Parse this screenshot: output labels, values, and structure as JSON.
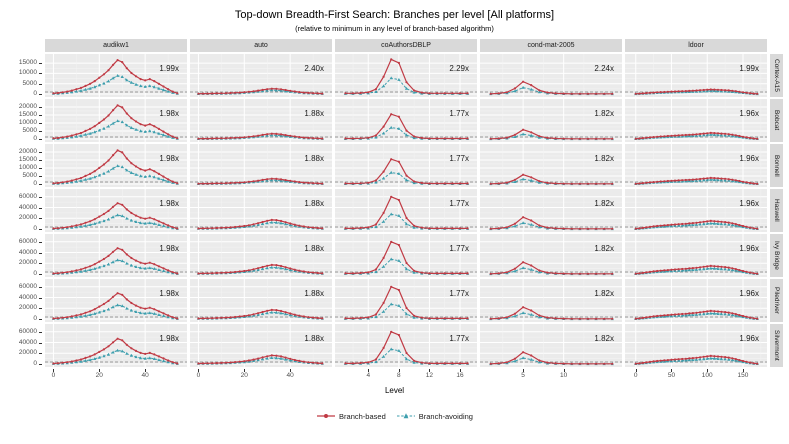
{
  "title": "Top-down Breadth-First Search: Branches per level [All platforms]",
  "subtitle": "(relative to minimum in any level of branch-based algorithm)",
  "chart_data": {
    "type": "line",
    "faceting": {
      "columns_by": "graph",
      "rows_by": "platform"
    },
    "x_axis": {
      "label": "Level"
    },
    "grid": "on",
    "legend_position": "bottom",
    "panel_background": "#ebebeb",
    "strip_background": "#d9d9d9",
    "reference_line": {
      "style": "dashed",
      "color": "#808080",
      "meaning": "minimum in any level of branch-based algorithm"
    },
    "series": [
      {
        "name": "Branch-based",
        "color": "#C03A44",
        "marker": "circle",
        "linestyle": "solid"
      },
      {
        "name": "Branch-avoiding",
        "color": "#3C9EAD",
        "marker": "triangle",
        "linestyle": "dashed"
      }
    ],
    "facet_columns": [
      {
        "label": "audikw1",
        "x_min": -1.5,
        "x_max": 56.5,
        "x_ticks": [
          0,
          20,
          40
        ],
        "levels": [
          0,
          2,
          4,
          6,
          8,
          10,
          12,
          14,
          16,
          18,
          20,
          22,
          24,
          26,
          28,
          30,
          32,
          34,
          36,
          38,
          40,
          42,
          44,
          46,
          48,
          50,
          52,
          54
        ],
        "branch_based_norm": [
          0.02,
          0.03,
          0.05,
          0.07,
          0.1,
          0.14,
          0.18,
          0.24,
          0.3,
          0.38,
          0.48,
          0.58,
          0.7,
          0.86,
          1.0,
          0.94,
          0.76,
          0.62,
          0.52,
          0.44,
          0.4,
          0.44,
          0.38,
          0.3,
          0.22,
          0.14,
          0.07,
          0.02
        ],
        "avoiding_ratio": 0.54
      },
      {
        "label": "auto",
        "x_min": -1.5,
        "x_max": 56.5,
        "x_ticks": [
          0,
          20,
          40
        ],
        "levels": [
          0,
          2,
          4,
          6,
          8,
          10,
          12,
          14,
          16,
          18,
          20,
          22,
          24,
          26,
          28,
          30,
          32,
          34,
          36,
          38,
          40,
          42,
          44,
          46,
          48,
          50,
          52,
          54
        ],
        "branch_based_norm": [
          0.06,
          0.07,
          0.08,
          0.09,
          0.11,
          0.13,
          0.15,
          0.18,
          0.22,
          0.27,
          0.33,
          0.41,
          0.51,
          0.63,
          0.77,
          0.9,
          1.0,
          0.97,
          0.88,
          0.74,
          0.6,
          0.47,
          0.36,
          0.27,
          0.2,
          0.15,
          0.11,
          0.07
        ],
        "avoiding_ratio": 0.72
      },
      {
        "label": "coAuthorsDBLP",
        "x_min": 0.3,
        "x_max": 17.7,
        "x_ticks": [
          4,
          8,
          12,
          16
        ],
        "levels": [
          1,
          2,
          3,
          4,
          5,
          6,
          7,
          8,
          9,
          10,
          11,
          12,
          13,
          14,
          15,
          16,
          17
        ],
        "branch_based_norm": [
          0.02,
          0.02,
          0.03,
          0.05,
          0.14,
          0.5,
          1.0,
          0.9,
          0.34,
          0.1,
          0.04,
          0.02,
          0.02,
          0.02,
          0.02,
          0.02,
          0.02
        ],
        "avoiding_ratio": 0.46
      },
      {
        "label": "cond-mat-2005",
        "x_min": 0.3,
        "x_max": 16.7,
        "x_ticks": [
          5,
          10
        ],
        "levels": [
          1,
          2,
          3,
          4,
          5,
          6,
          7,
          8,
          9,
          10,
          11,
          12,
          13,
          14,
          15,
          16
        ],
        "branch_based_norm": [
          0.02,
          0.05,
          0.14,
          0.45,
          1.0,
          0.72,
          0.3,
          0.12,
          0.05,
          0.03,
          0.02,
          0.02,
          0.02,
          0.02,
          0.02,
          0.02
        ],
        "avoiding_ratio": 0.52
      },
      {
        "label": "ldoor",
        "x_min": -8,
        "x_max": 178,
        "x_ticks": [
          0,
          50,
          100,
          150
        ],
        "levels": [
          0,
          5,
          10,
          15,
          20,
          25,
          30,
          35,
          40,
          45,
          50,
          55,
          60,
          65,
          70,
          75,
          80,
          85,
          90,
          95,
          100,
          105,
          110,
          115,
          120,
          125,
          130,
          135,
          140,
          145,
          150,
          155,
          160,
          165,
          170
        ],
        "branch_based_norm": [
          0.04,
          0.08,
          0.14,
          0.2,
          0.26,
          0.32,
          0.37,
          0.41,
          0.45,
          0.49,
          0.53,
          0.56,
          0.59,
          0.62,
          0.65,
          0.69,
          0.73,
          0.77,
          0.83,
          0.89,
          0.94,
          1.0,
          0.97,
          0.93,
          0.89,
          0.85,
          0.79,
          0.71,
          0.61,
          0.49,
          0.37,
          0.27,
          0.17,
          0.09,
          0.04
        ],
        "avoiding_ratio": 0.7
      }
    ],
    "facet_rows": [
      {
        "label": "Cortex-A15",
        "y_ticks": [
          0,
          5000,
          10000,
          15000
        ],
        "y_max": 17500,
        "branch_based_peaks": [
          16500,
          2600,
          16800,
          6000,
          2200
        ]
      },
      {
        "label": "Bobcat",
        "y_ticks": [
          0,
          5000,
          10000,
          15000,
          20000
        ],
        "y_max": 22500,
        "branch_based_peaks": [
          21000,
          3300,
          15500,
          5800,
          3800
        ]
      },
      {
        "label": "Bonnell",
        "y_ticks": [
          0,
          5000,
          10000,
          15000,
          20000
        ],
        "y_max": 22500,
        "branch_based_peaks": [
          21000,
          3300,
          15500,
          5800,
          3800
        ]
      },
      {
        "label": "Haswell",
        "y_ticks": [
          0,
          20000,
          40000,
          60000
        ],
        "y_max": 67000,
        "branch_based_peaks": [
          48000,
          17000,
          60000,
          22000,
          15000
        ]
      },
      {
        "label": "Ivy Bridge",
        "y_ticks": [
          0,
          20000,
          40000,
          60000
        ],
        "y_max": 67000,
        "branch_based_peaks": [
          48000,
          17000,
          60000,
          22000,
          15000
        ]
      },
      {
        "label": "Piledriver",
        "y_ticks": [
          0,
          20000,
          40000,
          60000
        ],
        "y_max": 67000,
        "branch_based_peaks": [
          48000,
          17000,
          60000,
          22000,
          15000
        ]
      },
      {
        "label": "Silvermont",
        "y_ticks": [
          0,
          20000,
          40000,
          60000
        ],
        "y_max": 67000,
        "branch_based_peaks": [
          47000,
          16000,
          60000,
          22000,
          15000
        ]
      }
    ],
    "annotations": [
      [
        "1.99x",
        "2.40x",
        "2.29x",
        "2.24x",
        "1.99x"
      ],
      [
        "1.98x",
        "1.88x",
        "1.77x",
        "1.82x",
        "1.96x"
      ],
      [
        "1.98x",
        "1.88x",
        "1.77x",
        "1.82x",
        "1.96x"
      ],
      [
        "1.98x",
        "1.88x",
        "1.77x",
        "1.82x",
        "1.96x"
      ],
      [
        "1.98x",
        "1.88x",
        "1.77x",
        "1.82x",
        "1.96x"
      ],
      [
        "1.98x",
        "1.88x",
        "1.77x",
        "1.82x",
        "1.96x"
      ],
      [
        "1.98x",
        "1.88x",
        "1.77x",
        "1.82x",
        "1.96x"
      ]
    ]
  }
}
